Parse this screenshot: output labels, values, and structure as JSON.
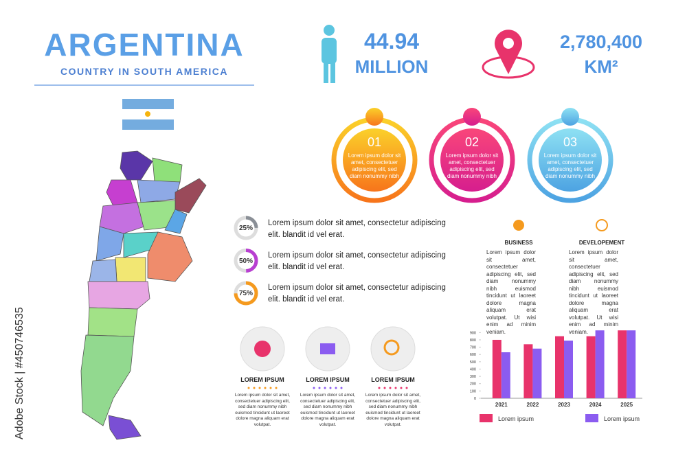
{
  "header": {
    "title": "ARGENTINA",
    "subtitle": "COUNTRY IN SOUTH AMERICA"
  },
  "stats": [
    {
      "value": "44.94",
      "unit": "MILLION"
    },
    {
      "value": "2,780,400",
      "unit": "KM²"
    }
  ],
  "steps": [
    {
      "number": "01",
      "text": "Lorem ipsum dolor sit amet, consectetuer adipiscing elit, sed diam nonummy nibh"
    },
    {
      "number": "02",
      "text": "Lorem ipsum dolor sit amet, consectetuer adipiscing elit, sed diam nonummy nibh"
    },
    {
      "number": "03",
      "text": "Lorem ipsum dolor sit amet, consectetuer adipiscing elit, sed diam nonummy nibh"
    }
  ],
  "progress": [
    {
      "label": "25%",
      "value": 25,
      "color": "#8a8f96",
      "text": "Lorem ipsum dolor sit amet, consectetur adipiscing elit. blandit id vel erat."
    },
    {
      "label": "50%",
      "value": 50,
      "color": "#b83fd1",
      "text": "Lorem ipsum dolor sit amet, consectetur adipiscing elit. blandit id vel erat."
    },
    {
      "label": "75%",
      "value": 75,
      "color": "#f59a1e",
      "text": "Lorem ipsum dolor sit amet, consectetur adipiscing elit. blandit id vel erat."
    }
  ],
  "features": [
    {
      "title": "BUSINESS",
      "text": "Lorem ipsum dolor sit amet, consectetuer adipiscing elit, sed diam nonummy nibh euismod tincidunt ut laoreet dolore magna aliquam erat volutpat. Ut wisi enim ad minim veniam."
    },
    {
      "title": "DEVELOPEMENT",
      "text": "Lorem ipsum dolor sit amet, consectetuer adipiscing elit, sed diam nonummy nibh euismod tincidunt ut laoreet dolore magna aliquam erat volutpat. Ut wisi enim ad minim veniam."
    }
  ],
  "cards": [
    {
      "title": "LOREM IPSUM",
      "text": "Lorem ipsum dolor sit amet, consectetuer adipiscing elit, sed diam nonummy nibh euismod tincidunt ut laoreet dolore magna aliquam erat volutpat."
    },
    {
      "title": "LOREM IPSUM",
      "text": "Lorem ipsum dolor sit amet, consectetuer adipiscing elit, sed diam nonummy nibh euismod tincidunt ut laoreet dolore magna aliquam erat volutpat."
    },
    {
      "title": "LOREM IPSUM",
      "text": "Lorem ipsum dolor sit amet, consectetuer adipiscing elit, sed diam nonummy nibh euismod tincidunt ut laoreet dolore magna aliquam erat volutpat."
    }
  ],
  "chart_data": {
    "type": "bar",
    "categories": [
      "2021",
      "2022",
      "2023",
      "2024",
      "2025"
    ],
    "series": [
      {
        "name": "Lorem ipsum",
        "color": "#e8336b",
        "values": [
          800,
          740,
          850,
          850,
          930
        ]
      },
      {
        "name": "Lorem ipsum",
        "color": "#8b5cf0",
        "values": [
          630,
          680,
          790,
          930,
          930
        ]
      }
    ],
    "ylim": [
      0,
      950
    ],
    "yticks": [
      0,
      100,
      200,
      300,
      400,
      500,
      600,
      700,
      800,
      900
    ]
  },
  "watermark": "Adobe Stock | #450746535"
}
